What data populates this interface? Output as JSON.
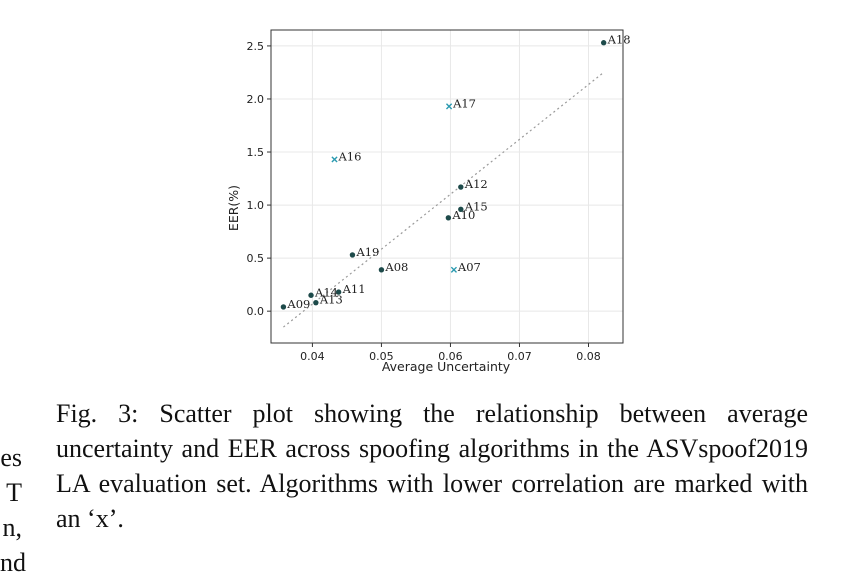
{
  "chart_data": {
    "type": "scatter",
    "xlabel": "Average Uncertainty",
    "ylabel": "EER(%)",
    "xlim": [
      0.034,
      0.085
    ],
    "ylim": [
      -0.3,
      2.65
    ],
    "xticks": [
      0.04,
      0.05,
      0.06,
      0.07,
      0.08
    ],
    "xtick_labels": [
      "0.04",
      "0.05",
      "0.06",
      "0.07",
      "0.08"
    ],
    "yticks": [
      0.0,
      0.5,
      1.0,
      1.5,
      2.0,
      2.5
    ],
    "ytick_labels": [
      "0.0",
      "0.5",
      "1.0",
      "1.5",
      "2.0",
      "2.5"
    ],
    "grid": true,
    "points": [
      {
        "label": "A07",
        "x": 0.0605,
        "y": 0.39,
        "marker": "x"
      },
      {
        "label": "A08",
        "x": 0.05,
        "y": 0.39,
        "marker": "o"
      },
      {
        "label": "A09",
        "x": 0.0358,
        "y": 0.04,
        "marker": "o"
      },
      {
        "label": "A10",
        "x": 0.0597,
        "y": 0.88,
        "marker": "o"
      },
      {
        "label": "A11",
        "x": 0.0438,
        "y": 0.18,
        "marker": "o"
      },
      {
        "label": "A12",
        "x": 0.0615,
        "y": 1.17,
        "marker": "o"
      },
      {
        "label": "A13",
        "x": 0.0405,
        "y": 0.08,
        "marker": "o"
      },
      {
        "label": "A14",
        "x": 0.0398,
        "y": 0.15,
        "marker": "o"
      },
      {
        "label": "A15",
        "x": 0.0615,
        "y": 0.96,
        "marker": "o"
      },
      {
        "label": "A16",
        "x": 0.0432,
        "y": 1.43,
        "marker": "x"
      },
      {
        "label": "A17",
        "x": 0.0598,
        "y": 1.93,
        "marker": "x"
      },
      {
        "label": "A18",
        "x": 0.0822,
        "y": 2.53,
        "marker": "o"
      },
      {
        "label": "A19",
        "x": 0.0458,
        "y": 0.53,
        "marker": "o"
      }
    ],
    "trendline": {
      "x": [
        0.0358,
        0.0822
      ],
      "y": [
        -0.15,
        2.25
      ]
    },
    "colors": {
      "circle": "#1d4a4a",
      "cross": "#2a9ab0",
      "trend": "#9a9a9a",
      "grid": "#e8e8e8",
      "axis": "#333333"
    }
  },
  "caption": "Fig. 3: Scatter plot showing the relationship between average uncertainty and EER across spoofing algorithms in the ASVspoof2019 LA evaluation set. Algorithms with lower correlation are marked with an ‘x’.",
  "margin_fragments": [
    "es",
    "T",
    "n,",
    "nd"
  ]
}
